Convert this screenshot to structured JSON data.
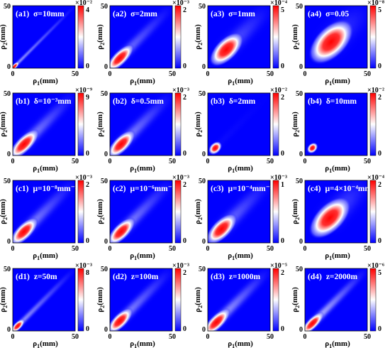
{
  "figure": {
    "background": "#ffffff",
    "plot_background": "#0000ff"
  },
  "colormap": [
    "#0000ff",
    "#ffffff",
    "#ff0000"
  ],
  "chart_data": [
    {
      "type": "heatmap",
      "panel_id": "(a1)",
      "title": "σ=10mm",
      "xlabel": "ρ1(mm)",
      "ylabel": "ρ2(mm)",
      "xlim": [
        0,
        50
      ],
      "ylim": [
        0,
        50
      ],
      "xticks": [
        "0",
        "50"
      ],
      "yticks": [
        "0",
        "50"
      ],
      "colorbar": {
        "multiplier": "×10⁻²",
        "ticks": [
          "0",
          "4"
        ],
        "range": [
          0,
          4
        ]
      },
      "blob": {
        "center": [
          1.5,
          1.5
        ],
        "sd_major": 4,
        "sd_minor": 1.5,
        "diag_trail": 0.3
      }
    },
    {
      "type": "heatmap",
      "panel_id": "(a2)",
      "title": "σ=2mm",
      "xlabel": "ρ1(mm)",
      "ylabel": "ρ2(mm)",
      "xlim": [
        0,
        50
      ],
      "ylim": [
        0,
        50
      ],
      "xticks": [
        "0",
        "50"
      ],
      "yticks": [
        "0",
        "50"
      ],
      "colorbar": {
        "multiplier": "×10⁻³",
        "ticks": [
          "0",
          "2"
        ],
        "range": [
          0,
          2
        ]
      },
      "blob": {
        "center": [
          8,
          8
        ],
        "sd_major": 12,
        "sd_minor": 4.5,
        "diag_trail": 0.25
      }
    },
    {
      "type": "heatmap",
      "panel_id": "(a3)",
      "title": "σ=1mm",
      "xlabel": "ρ1(mm)",
      "ylabel": "ρ2(mm)",
      "xlim": [
        0,
        50
      ],
      "ylim": [
        0,
        50
      ],
      "xticks": [
        "0",
        "50"
      ],
      "yticks": [
        "0",
        "50"
      ],
      "colorbar": {
        "multiplier": "×10⁻⁴",
        "ticks": [
          "0",
          "5"
        ],
        "range": [
          0,
          5
        ]
      },
      "blob": {
        "center": [
          15,
          15
        ],
        "sd_major": 14,
        "sd_minor": 7,
        "diag_trail": 0.2
      }
    },
    {
      "type": "heatmap",
      "panel_id": "(a4)",
      "title": "σ=0.05",
      "xlabel": "ρ1(mm)",
      "ylabel": "ρ2(mm)",
      "xlim": [
        0,
        50
      ],
      "ylim": [
        0,
        50
      ],
      "xticks": [
        "0",
        "50"
      ],
      "yticks": [
        "0",
        "50"
      ],
      "colorbar": {
        "multiplier": "×10⁻⁸",
        "ticks": [
          "0",
          "5"
        ],
        "range": [
          0,
          5
        ]
      },
      "blob": {
        "center": [
          21,
          21
        ],
        "sd_major": 18,
        "sd_minor": 10,
        "diag_trail": 0.15
      }
    },
    {
      "type": "heatmap",
      "panel_id": "(b1)",
      "title": "δ=10⁻³mm",
      "xlabel": "ρ1(mm)",
      "ylabel": "ρ2(mm)",
      "xlim": [
        0,
        50
      ],
      "ylim": [
        0,
        50
      ],
      "xticks": [
        "0",
        "50"
      ],
      "yticks": [
        "0",
        "50"
      ],
      "colorbar": {
        "multiplier": "×10⁻⁹",
        "ticks": [
          "0",
          "9"
        ],
        "range": [
          0,
          9
        ]
      },
      "blob": {
        "center": [
          9,
          9
        ],
        "sd_major": 13,
        "sd_minor": 5,
        "diag_trail": 0.3
      }
    },
    {
      "type": "heatmap",
      "panel_id": "(b2)",
      "title": "δ=0.5mm",
      "xlabel": "ρ1(mm)",
      "ylabel": "ρ2(mm)",
      "xlim": [
        0,
        50
      ],
      "ylim": [
        0,
        50
      ],
      "xticks": [
        "0",
        "50"
      ],
      "yticks": [
        "0",
        "50"
      ],
      "colorbar": {
        "multiplier": "×10⁻³",
        "ticks": [
          "0",
          "2"
        ],
        "range": [
          0,
          2
        ]
      },
      "blob": {
        "center": [
          9,
          9
        ],
        "sd_major": 12,
        "sd_minor": 5,
        "diag_trail": 0.3
      }
    },
    {
      "type": "heatmap",
      "panel_id": "(b3)",
      "title": "δ=2mm",
      "xlabel": "ρ1(mm)",
      "ylabel": "ρ2(mm)",
      "xlim": [
        0,
        50
      ],
      "ylim": [
        0,
        50
      ],
      "xticks": [
        "0",
        "50"
      ],
      "yticks": [
        "0",
        "50"
      ],
      "colorbar": {
        "multiplier": "×10⁻²",
        "ticks": [
          "0",
          "2"
        ],
        "range": [
          0,
          2
        ]
      },
      "blob": {
        "center": [
          6,
          6
        ],
        "sd_major": 5,
        "sd_minor": 3.5,
        "diag_trail": 0.02
      }
    },
    {
      "type": "heatmap",
      "panel_id": "(b4)",
      "title": "δ=10mm",
      "xlabel": "ρ1(mm)",
      "ylabel": "ρ2(mm)",
      "xlim": [
        0,
        50
      ],
      "ylim": [
        0,
        50
      ],
      "xticks": [
        "0",
        "50"
      ],
      "yticks": [
        "0",
        "50"
      ],
      "colorbar": {
        "multiplier": "×10⁻²",
        "ticks": [
          "0",
          "2"
        ],
        "range": [
          0,
          2
        ]
      },
      "blob": {
        "center": [
          6,
          6
        ],
        "sd_major": 4,
        "sd_minor": 3,
        "diag_trail": 0.0
      }
    },
    {
      "type": "heatmap",
      "panel_id": "(c1)",
      "title": "μ=10⁻⁸mm⁻¹",
      "xlabel": "ρ1(mm)",
      "ylabel": "ρ2(mm)",
      "xlim": [
        0,
        50
      ],
      "ylim": [
        0,
        50
      ],
      "xticks": [
        "0",
        "50"
      ],
      "yticks": [
        "0",
        "50"
      ],
      "colorbar": {
        "multiplier": "×10⁻³",
        "ticks": [
          "0",
          "2"
        ],
        "range": [
          0,
          2
        ]
      },
      "blob": {
        "center": [
          9,
          9
        ],
        "sd_major": 12,
        "sd_minor": 5,
        "diag_trail": 0.3
      }
    },
    {
      "type": "heatmap",
      "panel_id": "(c2)",
      "title": "μ=10⁻⁶mm⁻¹",
      "xlabel": "ρ1(mm)",
      "ylabel": "ρ2(mm)",
      "xlim": [
        0,
        50
      ],
      "ylim": [
        0,
        50
      ],
      "xticks": [
        "0",
        "50"
      ],
      "yticks": [
        "0",
        "50"
      ],
      "colorbar": {
        "multiplier": "×10⁻³",
        "ticks": [
          "0",
          "2"
        ],
        "range": [
          0,
          2
        ]
      },
      "blob": {
        "center": [
          9,
          9
        ],
        "sd_major": 12,
        "sd_minor": 5,
        "diag_trail": 0.3
      }
    },
    {
      "type": "heatmap",
      "panel_id": "(c3)",
      "title": "μ=10⁻⁴mm⁻¹",
      "xlabel": "ρ1(mm)",
      "ylabel": "ρ2(mm)",
      "xlim": [
        0,
        50
      ],
      "ylim": [
        0,
        50
      ],
      "xticks": [
        "0",
        "50"
      ],
      "yticks": [
        "0",
        "50"
      ],
      "colorbar": {
        "multiplier": "×10⁻³",
        "ticks": [
          "0",
          "1"
        ],
        "range": [
          0,
          1
        ]
      },
      "blob": {
        "center": [
          11,
          11
        ],
        "sd_major": 13,
        "sd_minor": 6,
        "diag_trail": 0.25
      }
    },
    {
      "type": "heatmap",
      "panel_id": "(c4)",
      "title": "μ=4×10⁻⁴mm⁻¹",
      "xlabel": "ρ1(mm)",
      "ylabel": "ρ2(mm)",
      "xlim": [
        0,
        50
      ],
      "ylim": [
        0,
        50
      ],
      "xticks": [
        "0",
        "50"
      ],
      "yticks": [
        "0",
        "50"
      ],
      "colorbar": {
        "multiplier": "×10⁻⁴",
        "ticks": [
          "0",
          "2"
        ],
        "range": [
          0,
          2
        ]
      },
      "blob": {
        "center": [
          20,
          20
        ],
        "sd_major": 17,
        "sd_minor": 9,
        "diag_trail": 0.2
      }
    },
    {
      "type": "heatmap",
      "panel_id": "(d1)",
      "title": "z=50m",
      "xlabel": "ρ1(mm)",
      "ylabel": "ρ2(mm)",
      "xlim": [
        0,
        50
      ],
      "ylim": [
        0,
        50
      ],
      "xticks": [
        "0",
        "50"
      ],
      "yticks": [
        "0",
        "50"
      ],
      "colorbar": {
        "multiplier": "×10⁻³",
        "ticks": [
          "0",
          "8"
        ],
        "range": [
          0,
          8
        ]
      },
      "blob": {
        "center": [
          4,
          4
        ],
        "sd_major": 6,
        "sd_minor": 2.5,
        "diag_trail": 0.3
      }
    },
    {
      "type": "heatmap",
      "panel_id": "(d2)",
      "title": "z=100m",
      "xlabel": "ρ1(mm)",
      "ylabel": "ρ2(mm)",
      "xlim": [
        0,
        50
      ],
      "ylim": [
        0,
        50
      ],
      "xticks": [
        "0",
        "50"
      ],
      "yticks": [
        "0",
        "50"
      ],
      "colorbar": {
        "multiplier": "×10⁻³",
        "ticks": [
          "0",
          "2"
        ],
        "range": [
          0,
          2
        ]
      },
      "blob": {
        "center": [
          8,
          8
        ],
        "sd_major": 11,
        "sd_minor": 4.5,
        "diag_trail": 0.3
      }
    },
    {
      "type": "heatmap",
      "panel_id": "(d3)",
      "title": "z=1000m",
      "xlabel": "ρ1(mm)",
      "ylabel": "ρ2(mm)",
      "xlim": [
        0,
        50
      ],
      "ylim": [
        0,
        50
      ],
      "xticks": [
        "0",
        "50"
      ],
      "yticks": [
        "0",
        "50"
      ],
      "colorbar": {
        "multiplier": "×10⁻⁵",
        "ticks": [
          "0",
          "2"
        ],
        "range": [
          0,
          2
        ]
      },
      "blob": {
        "center": [
          7,
          7
        ],
        "sd_major": 12,
        "sd_minor": 4.5,
        "diag_trail": 0.35
      }
    },
    {
      "type": "heatmap",
      "panel_id": "(d4)",
      "title": "z=2000m",
      "xlabel": "ρ1(mm)",
      "ylabel": "ρ2(mm)",
      "xlim": [
        0,
        50
      ],
      "ylim": [
        0,
        50
      ],
      "xticks": [
        "0",
        "50"
      ],
      "yticks": [
        "0",
        "50"
      ],
      "colorbar": {
        "multiplier": "×10⁻⁶",
        "ticks": [
          "0",
          "5"
        ],
        "range": [
          0,
          5
        ]
      },
      "blob": {
        "center": [
          6,
          6
        ],
        "sd_major": 10,
        "sd_minor": 3.5,
        "diag_trail": 0.4
      }
    }
  ]
}
